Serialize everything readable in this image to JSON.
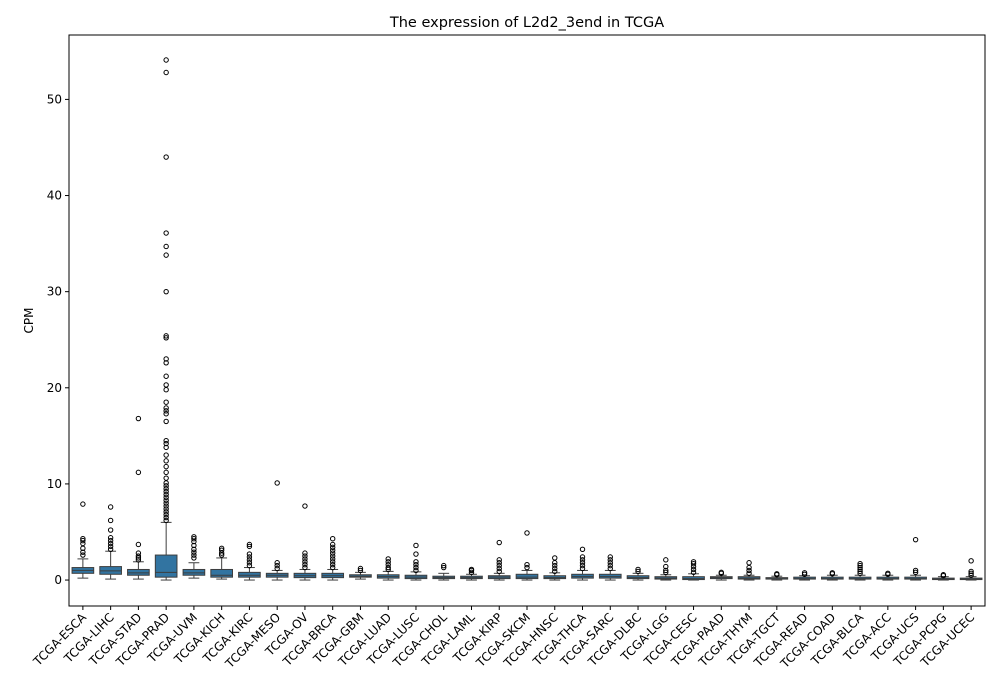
{
  "chart_data": {
    "type": "box",
    "title": "The expression of L2d2_3end in TCGA",
    "xlabel": "",
    "ylabel": "CPM",
    "ylim": [
      -2.7,
      56.7
    ],
    "yticks": [
      0,
      10,
      20,
      30,
      40,
      50
    ],
    "grid": false,
    "legend": "none",
    "box_color": "#3274a1",
    "categories": [
      "TCGA-ESCA",
      "TCGA-LIHC",
      "TCGA-STAD",
      "TCGA-PRAD",
      "TCGA-UVM",
      "TCGA-KICH",
      "TCGA-KIRC",
      "TCGA-MESO",
      "TCGA-OV",
      "TCGA-BRCA",
      "TCGA-GBM",
      "TCGA-LUAD",
      "TCGA-LUSC",
      "TCGA-CHOL",
      "TCGA-LAML",
      "TCGA-KIRP",
      "TCGA-SKCM",
      "TCGA-HNSC",
      "TCGA-THCA",
      "TCGA-SARC",
      "TCGA-DLBC",
      "TCGA-LGG",
      "TCGA-CESC",
      "TCGA-PAAD",
      "TCGA-THYM",
      "TCGA-TGCT",
      "TCGA-READ",
      "TCGA-COAD",
      "TCGA-BLCA",
      "TCGA-ACC",
      "TCGA-UCS",
      "TCGA-PCPG",
      "TCGA-UCEC"
    ],
    "boxes": [
      {
        "whisker_low": 0.2,
        "q1": 0.7,
        "median": 1.0,
        "q3": 1.3,
        "whisker_high": 2.2,
        "outliers": [
          2.6,
          2.9,
          3.3,
          3.8,
          4.1,
          4.3,
          7.9
        ]
      },
      {
        "whisker_low": 0.1,
        "q1": 0.6,
        "median": 0.95,
        "q3": 1.4,
        "whisker_high": 3.0,
        "outliers": [
          3.2,
          3.5,
          3.8,
          4.1,
          4.4,
          5.2,
          6.2,
          7.6
        ]
      },
      {
        "whisker_low": 0.1,
        "q1": 0.5,
        "median": 0.75,
        "q3": 1.1,
        "whisker_high": 1.9,
        "outliers": [
          2.1,
          2.3,
          2.5,
          2.8,
          3.7,
          11.2,
          16.8
        ]
      },
      {
        "whisker_low": 0.0,
        "q1": 0.3,
        "median": 0.8,
        "q3": 2.6,
        "whisker_high": 6.0,
        "outliers": [
          6.2,
          6.5,
          6.8,
          7.1,
          7.4,
          7.7,
          8.0,
          8.3,
          8.6,
          8.9,
          9.2,
          9.5,
          9.8,
          10.1,
          10.6,
          11.2,
          11.8,
          12.4,
          13.0,
          13.8,
          14.2,
          14.5,
          16.5,
          17.3,
          17.6,
          17.9,
          18.5,
          19.8,
          20.3,
          21.2,
          22.6,
          23.0,
          25.2,
          25.4,
          30.0,
          33.8,
          34.7,
          36.1,
          44.0,
          52.8,
          54.1
        ]
      },
      {
        "whisker_low": 0.2,
        "q1": 0.5,
        "median": 0.75,
        "q3": 1.1,
        "whisker_high": 1.8,
        "outliers": [
          2.3,
          2.6,
          2.9,
          3.2,
          3.6,
          4.0,
          4.3,
          4.5
        ]
      },
      {
        "whisker_low": 0.1,
        "q1": 0.3,
        "median": 0.5,
        "q3": 1.1,
        "whisker_high": 2.3,
        "outliers": [
          2.6,
          2.8,
          3.1,
          3.3
        ]
      },
      {
        "whisker_low": 0.0,
        "q1": 0.3,
        "median": 0.5,
        "q3": 0.8,
        "whisker_high": 1.3,
        "outliers": [
          1.5,
          1.8,
          2.1,
          2.4,
          2.7,
          3.5,
          3.7
        ]
      },
      {
        "whisker_low": 0.0,
        "q1": 0.3,
        "median": 0.5,
        "q3": 0.7,
        "whisker_high": 1.0,
        "outliers": [
          1.2,
          1.5,
          1.8,
          10.1
        ]
      },
      {
        "whisker_low": 0.0,
        "q1": 0.25,
        "median": 0.45,
        "q3": 0.7,
        "whisker_high": 1.1,
        "outliers": [
          1.3,
          1.6,
          1.9,
          2.2,
          2.5,
          2.8,
          7.7
        ]
      },
      {
        "whisker_low": 0.0,
        "q1": 0.25,
        "median": 0.45,
        "q3": 0.7,
        "whisker_high": 1.1,
        "outliers": [
          1.3,
          1.6,
          1.9,
          2.2,
          2.5,
          2.8,
          3.1,
          3.4,
          3.7,
          4.3
        ]
      },
      {
        "whisker_low": 0.1,
        "q1": 0.3,
        "median": 0.4,
        "q3": 0.55,
        "whisker_high": 0.8,
        "outliers": [
          1.0,
          1.2
        ]
      },
      {
        "whisker_low": 0.0,
        "q1": 0.2,
        "median": 0.35,
        "q3": 0.55,
        "whisker_high": 0.9,
        "outliers": [
          1.1,
          1.3,
          1.6,
          1.9,
          2.2
        ]
      },
      {
        "whisker_low": 0.0,
        "q1": 0.15,
        "median": 0.3,
        "q3": 0.5,
        "whisker_high": 0.85,
        "outliers": [
          1.0,
          1.3,
          1.6,
          1.9,
          2.7,
          3.6
        ]
      },
      {
        "whisker_low": 0.0,
        "q1": 0.15,
        "median": 0.25,
        "q3": 0.4,
        "whisker_high": 0.7,
        "outliers": [
          1.3,
          1.5
        ]
      },
      {
        "whisker_low": 0.0,
        "q1": 0.15,
        "median": 0.25,
        "q3": 0.4,
        "whisker_high": 0.6,
        "outliers": [
          0.8,
          1.0,
          1.1
        ]
      },
      {
        "whisker_low": 0.0,
        "q1": 0.15,
        "median": 0.3,
        "q3": 0.45,
        "whisker_high": 0.7,
        "outliers": [
          0.9,
          1.2,
          1.5,
          1.8,
          2.1,
          3.9
        ]
      },
      {
        "whisker_low": 0.0,
        "q1": 0.15,
        "median": 0.3,
        "q3": 0.6,
        "whisker_high": 1.0,
        "outliers": [
          1.3,
          1.6,
          4.9
        ]
      },
      {
        "whisker_low": 0.0,
        "q1": 0.15,
        "median": 0.25,
        "q3": 0.45,
        "whisker_high": 0.75,
        "outliers": [
          0.9,
          1.2,
          1.5,
          1.8,
          2.3
        ]
      },
      {
        "whisker_low": 0.0,
        "q1": 0.2,
        "median": 0.35,
        "q3": 0.6,
        "whisker_high": 1.0,
        "outliers": [
          1.2,
          1.5,
          1.8,
          2.1,
          2.4,
          3.2
        ]
      },
      {
        "whisker_low": 0.0,
        "q1": 0.2,
        "median": 0.35,
        "q3": 0.6,
        "whisker_high": 1.0,
        "outliers": [
          1.2,
          1.5,
          1.8,
          2.1,
          2.4
        ]
      },
      {
        "whisker_low": 0.0,
        "q1": 0.15,
        "median": 0.25,
        "q3": 0.45,
        "whisker_high": 0.7,
        "outliers": [
          0.9,
          1.1
        ]
      },
      {
        "whisker_low": 0.0,
        "q1": 0.1,
        "median": 0.2,
        "q3": 0.35,
        "whisker_high": 0.55,
        "outliers": [
          0.8,
          1.0,
          1.4,
          2.1
        ]
      },
      {
        "whisker_low": 0.0,
        "q1": 0.05,
        "median": 0.15,
        "q3": 0.35,
        "whisker_high": 0.65,
        "outliers": [
          0.8,
          1.1,
          1.4,
          1.7,
          1.9
        ]
      },
      {
        "whisker_low": 0.0,
        "q1": 0.15,
        "median": 0.25,
        "q3": 0.35,
        "whisker_high": 0.5,
        "outliers": [
          0.7,
          0.8
        ]
      },
      {
        "whisker_low": 0.0,
        "q1": 0.1,
        "median": 0.2,
        "q3": 0.35,
        "whisker_high": 0.5,
        "outliers": [
          0.7,
          1.0,
          1.3,
          1.8
        ]
      },
      {
        "whisker_low": 0.0,
        "q1": 0.1,
        "median": 0.15,
        "q3": 0.25,
        "whisker_high": 0.4,
        "outliers": [
          0.55,
          0.65
        ]
      },
      {
        "whisker_low": 0.0,
        "q1": 0.1,
        "median": 0.15,
        "q3": 0.3,
        "whisker_high": 0.45,
        "outliers": [
          0.6,
          0.75
        ]
      },
      {
        "whisker_low": 0.0,
        "q1": 0.1,
        "median": 0.15,
        "q3": 0.3,
        "whisker_high": 0.5,
        "outliers": [
          0.65,
          0.75
        ]
      },
      {
        "whisker_low": 0.0,
        "q1": 0.1,
        "median": 0.15,
        "q3": 0.3,
        "whisker_high": 0.5,
        "outliers": [
          0.7,
          0.9,
          1.1,
          1.3,
          1.5,
          1.7
        ]
      },
      {
        "whisker_low": 0.0,
        "q1": 0.1,
        "median": 0.15,
        "q3": 0.3,
        "whisker_high": 0.5,
        "outliers": [
          0.6,
          0.7
        ]
      },
      {
        "whisker_low": 0.0,
        "q1": 0.1,
        "median": 0.15,
        "q3": 0.3,
        "whisker_high": 0.5,
        "outliers": [
          0.8,
          1.0,
          4.2
        ]
      },
      {
        "whisker_low": 0.0,
        "q1": 0.05,
        "median": 0.1,
        "q3": 0.2,
        "whisker_high": 0.35,
        "outliers": [
          0.45,
          0.55
        ]
      },
      {
        "whisker_low": 0.0,
        "q1": 0.05,
        "median": 0.1,
        "q3": 0.2,
        "whisker_high": 0.35,
        "outliers": [
          0.5,
          0.7,
          0.9,
          2.0
        ]
      }
    ]
  }
}
